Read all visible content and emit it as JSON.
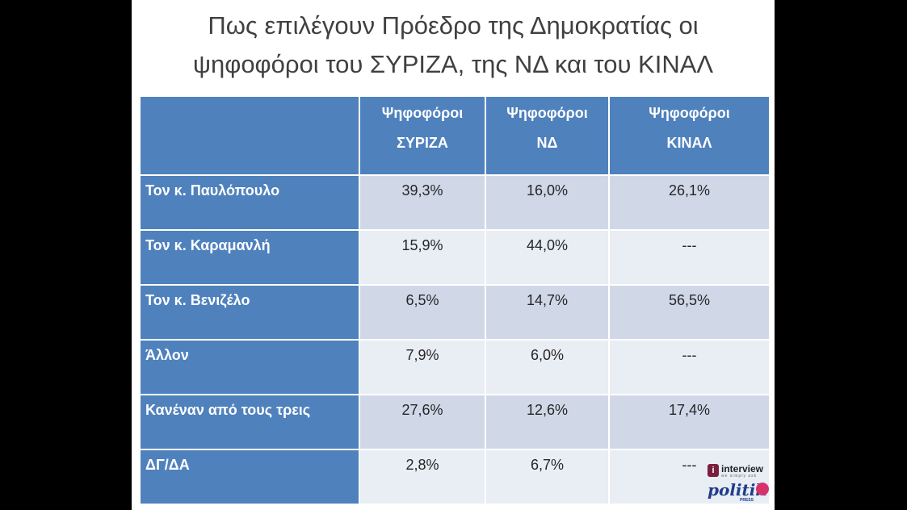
{
  "title": {
    "line1": "Πως επιλέγουν Πρόεδρο της Δημοκρατίας οι",
    "line2": "ψηφοφόροι του ΣΥΡΙΖΑ, της ΝΔ και του ΚΙΝΑΛ"
  },
  "table": {
    "headers": [
      {
        "line1": "Ψηφοφόροι",
        "line2": "ΣΥΡΙΖΑ"
      },
      {
        "line1": "Ψηφοφόροι",
        "line2": "ΝΔ"
      },
      {
        "line1": "Ψηφοφόροι",
        "line2": "ΚΙΝΑΛ"
      }
    ],
    "rows": [
      {
        "label": "Τον κ. Παυλόπουλο",
        "values": [
          "39,3%",
          "16,0%",
          "26,1%"
        ]
      },
      {
        "label": "Τον κ. Καραμανλή",
        "values": [
          "15,9%",
          "44,0%",
          "---"
        ]
      },
      {
        "label": "Τον κ. Βενιζέλο",
        "values": [
          "6,5%",
          "14,7%",
          "56,5%"
        ]
      },
      {
        "label": "Άλλον",
        "values": [
          "7,9%",
          "6,0%",
          "---"
        ]
      },
      {
        "label": "Κανέναν από τους τρεις",
        "values": [
          "27,6%",
          "12,6%",
          "17,4%"
        ]
      },
      {
        "label": "ΔΓ/ΔΑ",
        "values": [
          "2,8%",
          "6,7%",
          "---"
        ]
      }
    ]
  },
  "logos": {
    "interview": {
      "badge": "i",
      "word": "interview",
      "tagline": "we simply ask"
    },
    "politik": {
      "word": "politik",
      "sub": "PRESS"
    }
  },
  "colors": {
    "header_blue": "#4f81bd",
    "row_light": "#e9edf4",
    "row_mid": "#d0d8e8",
    "title_text": "#404040"
  }
}
